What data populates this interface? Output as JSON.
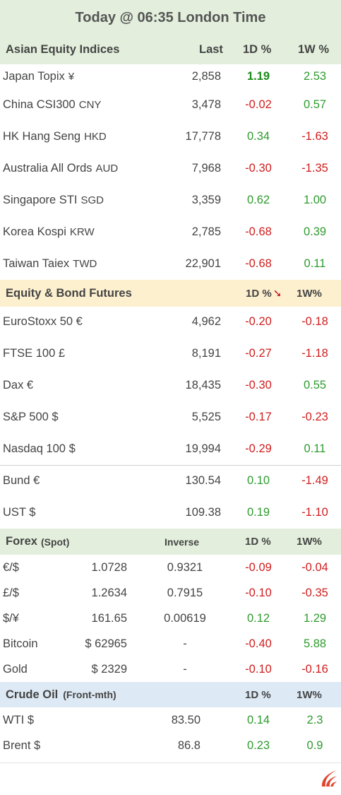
{
  "title": "Today @ 06:35 London Time",
  "asian": {
    "header": {
      "name": "Asian Equity Indices",
      "last": "Last",
      "d1": "1D %",
      "w1": "1W %"
    },
    "rows": [
      {
        "name": "Japan Topix",
        "cur": "¥",
        "last": "2,858",
        "d1": "1.19",
        "w1": "2.53"
      },
      {
        "name": "China CSI300",
        "cur": "CNY",
        "last": "3,478",
        "d1": "-0.02",
        "w1": "0.57"
      },
      {
        "name": "HK Hang Seng",
        "cur": "HKD",
        "last": "17,778",
        "d1": "0.34",
        "w1": "-1.63"
      },
      {
        "name": "Australia All Ords",
        "cur": "AUD",
        "last": "7,968",
        "d1": "-0.30",
        "w1": "-1.35"
      },
      {
        "name": "Singapore STI",
        "cur": "SGD",
        "last": "3,359",
        "d1": "0.62",
        "w1": "1.00"
      },
      {
        "name": "Korea Kospi",
        "cur": "KRW",
        "last": "2,785",
        "d1": "-0.68",
        "w1": "0.39"
      },
      {
        "name": "Taiwan Taiex",
        "cur": "TWD",
        "last": "22,901",
        "d1": "-0.68",
        "w1": "0.11"
      }
    ]
  },
  "futures": {
    "header": {
      "name": "Equity & Bond Futures",
      "d1": "1D %",
      "w1": "1W%"
    },
    "rows": [
      {
        "name": "EuroStoxx 50 €",
        "last": "4,962",
        "d1": "-0.20",
        "w1": "-0.18"
      },
      {
        "name": "FTSE 100  £",
        "last": "8,191",
        "d1": "-0.27",
        "w1": "-1.18"
      },
      {
        "name": "Dax  €",
        "last": "18,435",
        "d1": "-0.30",
        "w1": "0.55"
      },
      {
        "name": "S&P 500 $",
        "last": "5,525",
        "d1": "-0.17",
        "w1": "-0.23"
      },
      {
        "name": "Nasdaq 100 $",
        "last": "19,994",
        "d1": "-0.29",
        "w1": "0.11"
      },
      {
        "name": "Bund  €",
        "last": "130.54",
        "d1": "0.10",
        "w1": "-1.49"
      },
      {
        "name": "UST $",
        "last": "109.38",
        "d1": "0.19",
        "w1": "-1.10"
      }
    ]
  },
  "forex": {
    "header": {
      "name": "Forex",
      "sub": "(Spot)",
      "inverse": "Inverse",
      "d1": "1D %",
      "w1": "1W%"
    },
    "rows": [
      {
        "name": "€/$",
        "rate": "1.0728",
        "inv": "0.9321",
        "d1": "-0.09",
        "w1": "-0.04"
      },
      {
        "name": "£/$",
        "rate": "1.2634",
        "inv": "0.7915",
        "d1": "-0.10",
        "w1": "-0.35"
      },
      {
        "name": "$/¥",
        "rate": "161.65",
        "inv": "0.00619",
        "d1": "0.12",
        "w1": "1.29"
      },
      {
        "name": "Bitcoin",
        "rate": "$ 62965",
        "inv": "-",
        "d1": "-0.40",
        "w1": "5.88"
      },
      {
        "name": "Gold",
        "rate": "$ 2329",
        "inv": "-",
        "d1": "-0.10",
        "w1": "-0.16"
      }
    ]
  },
  "crude": {
    "header": {
      "name": "Crude Oil",
      "sub": "(Front-mth)",
      "d1": "1D %",
      "w1": "1W%"
    },
    "rows": [
      {
        "name": "WTI  $",
        "last": "83.50",
        "d1": "0.14",
        "w1": "2.3"
      },
      {
        "name": "Brent $",
        "last": "86.8",
        "d1": "0.23",
        "w1": "0.9"
      }
    ]
  },
  "colors": {
    "asian_bg": "#e3efdc",
    "futures_bg": "#fdf0cf",
    "forex_bg": "#e3efdc",
    "crude_bg": "#dde9f4",
    "positive": "#2e9b2e",
    "negative": "#d11d1d"
  },
  "icons": {
    "logo": "flame-logo-icon",
    "sort": "down-arrow-icon"
  }
}
